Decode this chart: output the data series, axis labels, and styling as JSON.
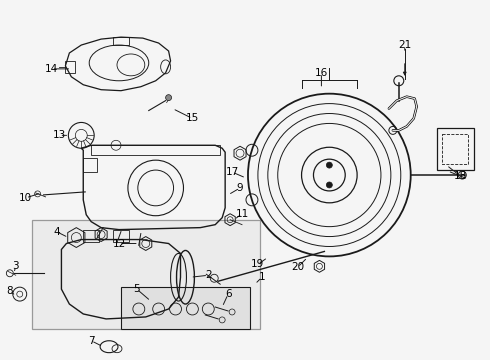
{
  "background_color": "#f5f5f5",
  "line_color": "#1a1a1a",
  "label_color": "#000000",
  "font_size": 7.5,
  "figsize": [
    4.9,
    3.6
  ],
  "dpi": 100
}
